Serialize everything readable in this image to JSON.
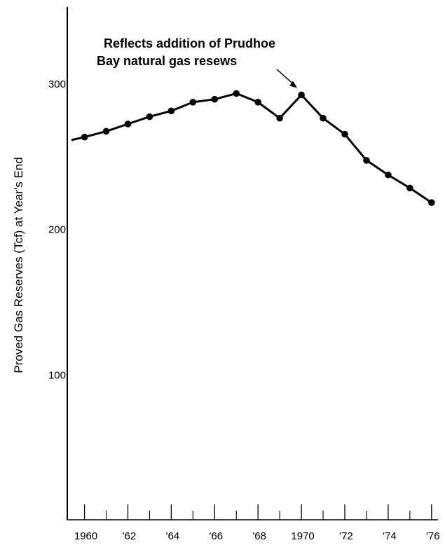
{
  "chart_data": {
    "type": "line",
    "ylabel": "Proved Gas Reserves (Tcf) at Year's End",
    "ylim": [
      0,
      350
    ],
    "xlim": [
      1959.4,
      1976.2
    ],
    "yticks": [
      100,
      200,
      300
    ],
    "ytick_labels": [
      "100",
      "200",
      "300"
    ],
    "xtick_positions": [
      1960,
      1962,
      1964,
      1966,
      1968,
      1970,
      1972,
      1974,
      1976
    ],
    "xtick_labels": [
      "1960",
      "'62",
      "'64",
      "'66",
      "'68",
      "1970",
      "'72",
      "'74",
      "'76"
    ],
    "annotation": {
      "lines": [
        "Reflects addition of Prudhoe",
        "Bay natural gas resews"
      ],
      "points_to_year": 1970
    },
    "grid": false,
    "series": [
      {
        "x": [
          1959.4,
          1960,
          1961,
          1962,
          1963,
          1964,
          1965,
          1966,
          1967,
          1968,
          1969,
          1970,
          1971,
          1972,
          1973,
          1974,
          1975,
          1976
        ],
        "y": [
          261,
          263,
          267,
          272,
          277,
          281,
          287,
          289,
          293,
          287,
          276,
          292,
          276,
          265,
          247,
          237,
          228,
          218
        ],
        "markers": [
          false,
          true,
          true,
          true,
          true,
          true,
          true,
          true,
          true,
          true,
          true,
          true,
          true,
          true,
          true,
          true,
          true,
          true
        ]
      }
    ]
  }
}
